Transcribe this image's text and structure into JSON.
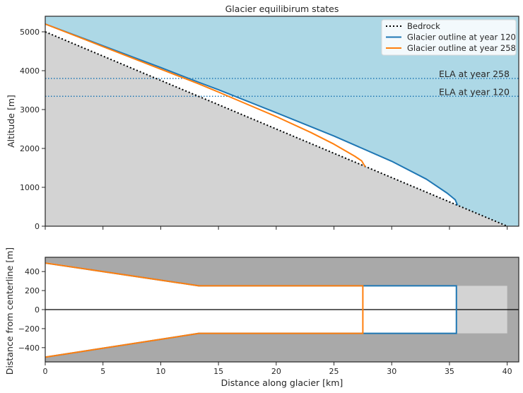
{
  "chart_data": [
    {
      "type": "line",
      "title": "Glacier equilibirum states",
      "xlabel": "",
      "ylabel": "Altitude [m]",
      "xlim": [
        0,
        41
      ],
      "ylim": [
        0,
        5400
      ],
      "xticks": [
        0,
        5,
        10,
        15,
        20,
        25,
        30,
        35,
        40
      ],
      "yticks": [
        0,
        1000,
        2000,
        3000,
        4000,
        5000
      ],
      "legend_position": "top-right",
      "fills": {
        "sky": "#add8e6",
        "ground": "#d3d3d3"
      },
      "series": [
        {
          "name": "Bedrock",
          "style": "dotted",
          "color": "#000000",
          "x": [
            0,
            40
          ],
          "y": [
            5000,
            0
          ]
        },
        {
          "name": "Glacier outline at year 120",
          "style": "solid",
          "color": "#1f77b4",
          "x": [
            0,
            5,
            10,
            13.3,
            15,
            20,
            25,
            30,
            33,
            34.8,
            35.5,
            35.7
          ],
          "y": [
            5200,
            4640,
            4080,
            3700,
            3510,
            2920,
            2320,
            1670,
            1210,
            850,
            680,
            540
          ]
        },
        {
          "name": "Glacier outline at year 258",
          "style": "solid",
          "color": "#ff7f0e",
          "x": [
            0,
            5,
            10,
            13.3,
            15,
            20,
            23,
            25,
            26.8,
            27.4,
            27.7
          ],
          "y": [
            5200,
            4620,
            4040,
            3660,
            3450,
            2820,
            2410,
            2110,
            1800,
            1680,
            1530
          ]
        }
      ],
      "hlines": [
        {
          "y": 3800,
          "color": "#1f77b4",
          "style": "dotted",
          "label": "ELA at year 258"
        },
        {
          "y": 3340,
          "color": "#1f77b4",
          "style": "dotted",
          "label": "ELA at year 120"
        }
      ]
    },
    {
      "type": "line",
      "title": "",
      "xlabel": "Distance along glacier [km]",
      "ylabel": "Distance from centerline [m]",
      "xlim": [
        0,
        41
      ],
      "ylim": [
        -550,
        550
      ],
      "xticks": [
        0,
        5,
        10,
        15,
        20,
        25,
        30,
        35,
        40
      ],
      "yticks": [
        -400,
        -200,
        0,
        200,
        400
      ],
      "fills": {
        "background": "#a9a9a9",
        "valley": "#d3d3d3"
      },
      "valley_outline": {
        "x": [
          0,
          13.3,
          40
        ],
        "half_width": [
          500,
          250,
          250
        ]
      },
      "series": [
        {
          "name": "Glacier outline at year 120",
          "color": "#1f77b4",
          "x": [
            0,
            13.3,
            35.6,
            35.6,
            13.3,
            0
          ],
          "y": [
            490,
            250,
            250,
            -250,
            -250,
            -500
          ]
        },
        {
          "name": "Glacier outline at year 258",
          "color": "#ff7f0e",
          "x": [
            0,
            13.3,
            27.5,
            27.5,
            13.3,
            0
          ],
          "y": [
            490,
            250,
            250,
            -250,
            -250,
            -500
          ]
        }
      ],
      "centerline_y": 0
    }
  ]
}
